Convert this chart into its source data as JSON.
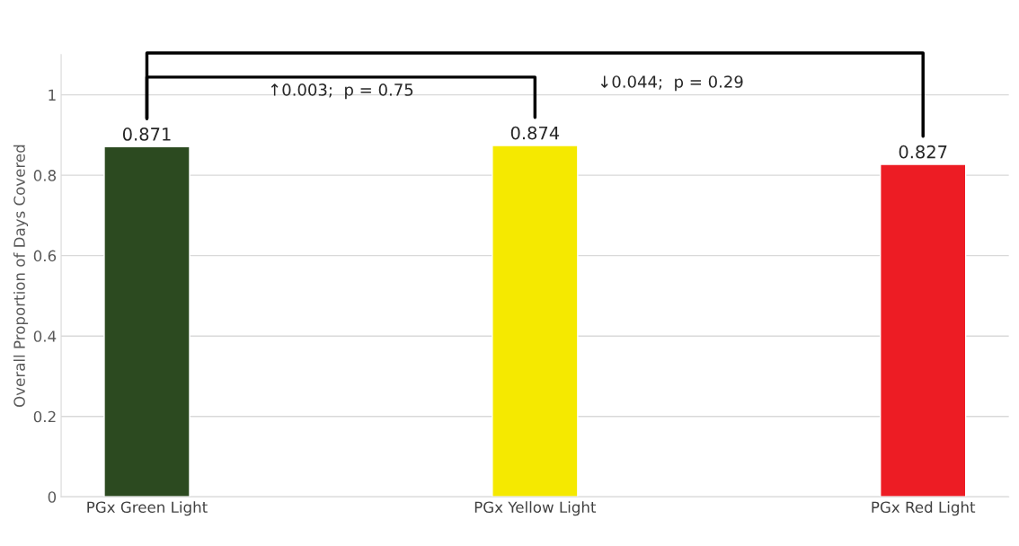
{
  "chart_data": {
    "type": "bar",
    "ylabel": "Overall Proportion of Days Covered",
    "categories": [
      "PGx Green Light",
      "PGx Yellow Light",
      "PGx Red Light"
    ],
    "values": [
      0.871,
      0.874,
      0.827
    ],
    "colors": [
      "#2c4a20",
      "#f5e900",
      "#ed1c24"
    ],
    "ylim": [
      0,
      1.1
    ],
    "yticks": [
      0,
      0.2,
      0.4,
      0.6,
      0.8,
      1
    ],
    "grid": "y",
    "data_labels": true,
    "annotations": [
      "↑0.003;  p = 0.75",
      "↓0.044;  p = 0.29"
    ]
  }
}
